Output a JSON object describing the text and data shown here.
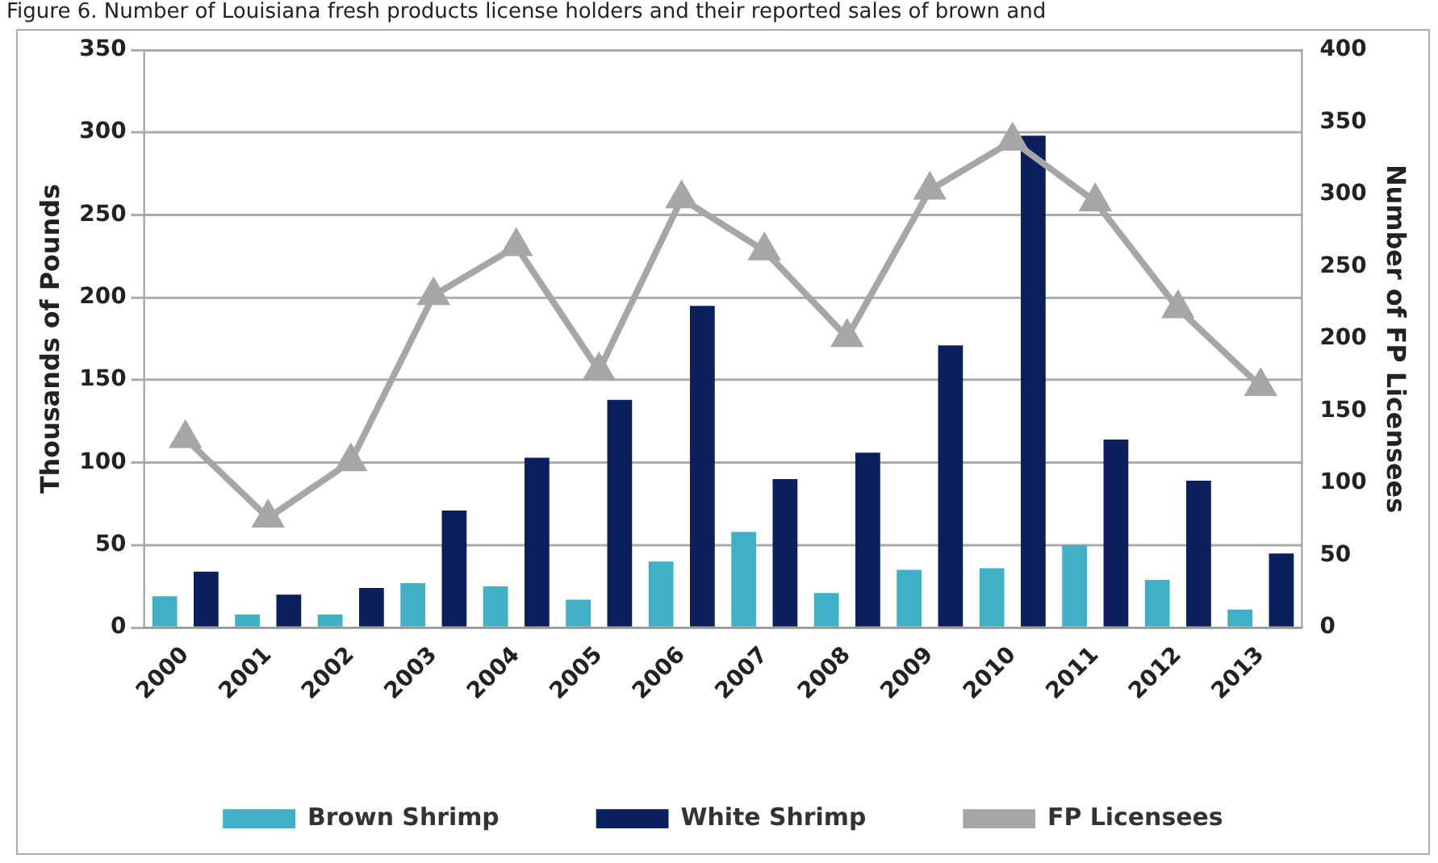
{
  "chart_data": {
    "type": "bar",
    "title": "Figure 6. Number of Louisiana fresh products license holders and their reported sales of brown and",
    "categories": [
      "2000",
      "2001",
      "2002",
      "2003",
      "2004",
      "2005",
      "2006",
      "2007",
      "2008",
      "2009",
      "2010",
      "2011",
      "2012",
      "2013"
    ],
    "series": [
      {
        "name": "Brown Shrimp",
        "color": "#3fb0c6",
        "values": [
          19,
          8,
          8,
          27,
          25,
          17,
          40,
          58,
          21,
          35,
          36,
          50,
          29,
          11
        ]
      },
      {
        "name": "White Shrimp",
        "color": "#0a1f5c",
        "values": [
          34,
          20,
          24,
          71,
          103,
          138,
          195,
          90,
          106,
          171,
          298,
          114,
          89,
          45
        ]
      },
      {
        "name": "FP Licensees",
        "type": "line",
        "axis": "y2",
        "color": "#a6a6a6",
        "marker": "triangle",
        "values": [
          131,
          76,
          115,
          230,
          264,
          178,
          297,
          261,
          201,
          303,
          337,
          295,
          221,
          167
        ]
      }
    ],
    "ylabel": "Thousands of Pounds",
    "y2label": "Number of FP Licensees",
    "ylim": [
      0,
      350
    ],
    "yticks": [
      0,
      50,
      100,
      150,
      200,
      250,
      300,
      350
    ],
    "y2lim": [
      0,
      400
    ],
    "y2ticks": [
      0,
      50,
      100,
      150,
      200,
      250,
      300,
      350,
      400
    ],
    "grid": "y",
    "legend": "bottom"
  }
}
